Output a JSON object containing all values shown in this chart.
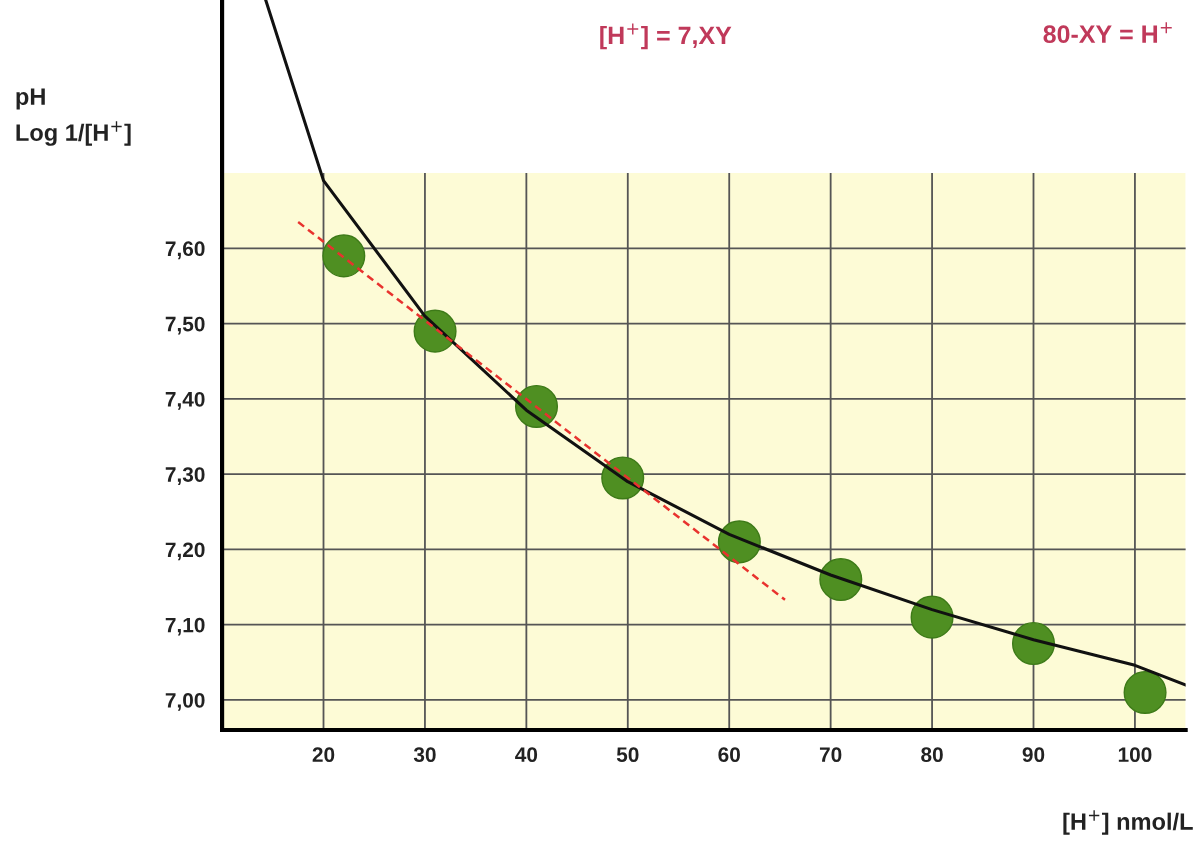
{
  "chart_data": {
    "type": "line",
    "xlabel": "[H$^{+}$] nmol/L",
    "ylabel": "pH\nLog 1/[H$^{+}$]",
    "xlim": [
      10,
      105
    ],
    "ylim": [
      6.96,
      7.93
    ],
    "xticks": [
      20,
      30,
      40,
      50,
      60,
      70,
      80,
      90,
      100
    ],
    "yticks": [
      {
        "value": 7.0,
        "label": "7,00"
      },
      {
        "value": 7.1,
        "label": "7,10"
      },
      {
        "value": 7.2,
        "label": "7,20"
      },
      {
        "value": 7.3,
        "label": "7,30"
      },
      {
        "value": 7.4,
        "label": "7,40"
      },
      {
        "value": 7.5,
        "label": "7,50"
      },
      {
        "value": 7.6,
        "label": "7,60"
      }
    ],
    "grid": true,
    "bands": [
      {
        "axis": "y",
        "from": 6.96,
        "to": 7.7,
        "color": "#fdfbd6"
      }
    ],
    "annotations": [
      "[H$^{+}$] = 7,XY",
      "80-XY = H$^{+}$"
    ],
    "series": [
      {
        "color": "#111111",
        "line_style": "solid",
        "x": [
          14.3,
          20,
          30,
          40,
          50,
          60,
          70,
          80,
          90,
          100,
          105
        ],
        "values": [
          7.93,
          7.69,
          7.51,
          7.385,
          7.29,
          7.22,
          7.166,
          7.12,
          7.08,
          7.046,
          7.02
        ]
      },
      {
        "type": "line",
        "color": "#e8322e",
        "line_style": "dashed",
        "x": [
          17.5,
          65.5
        ],
        "values": [
          7.635,
          7.133
        ]
      },
      {
        "type": "scatter",
        "marker": "circle",
        "color": "#4f8f22",
        "x": [
          22,
          31,
          41,
          49.5,
          61,
          71,
          80,
          90,
          101
        ],
        "values": [
          7.59,
          7.49,
          7.39,
          7.295,
          7.21,
          7.16,
          7.11,
          7.075,
          7.01
        ]
      }
    ]
  }
}
